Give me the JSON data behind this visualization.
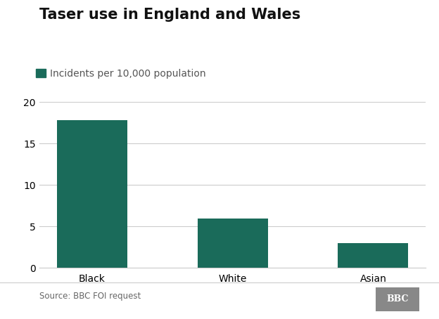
{
  "title": "Taser use in England and Wales",
  "legend_label": "Incidents per 10,000 population",
  "categories": [
    "Black",
    "White",
    "Asian"
  ],
  "values": [
    17.8,
    6.0,
    3.0
  ],
  "bar_color": "#1a6b5a",
  "ylim": [
    0,
    20
  ],
  "yticks": [
    0,
    5,
    10,
    15,
    20
  ],
  "background_color": "#ffffff",
  "source_text": "Source: BBC FOI request",
  "bbc_text": "BBC",
  "title_fontsize": 15,
  "legend_fontsize": 10,
  "tick_fontsize": 10,
  "source_fontsize": 8.5,
  "bbc_fontsize": 9,
  "bar_width": 0.5,
  "grid_color": "#cccccc",
  "source_color": "#666666",
  "bbc_bg_color": "#888888"
}
